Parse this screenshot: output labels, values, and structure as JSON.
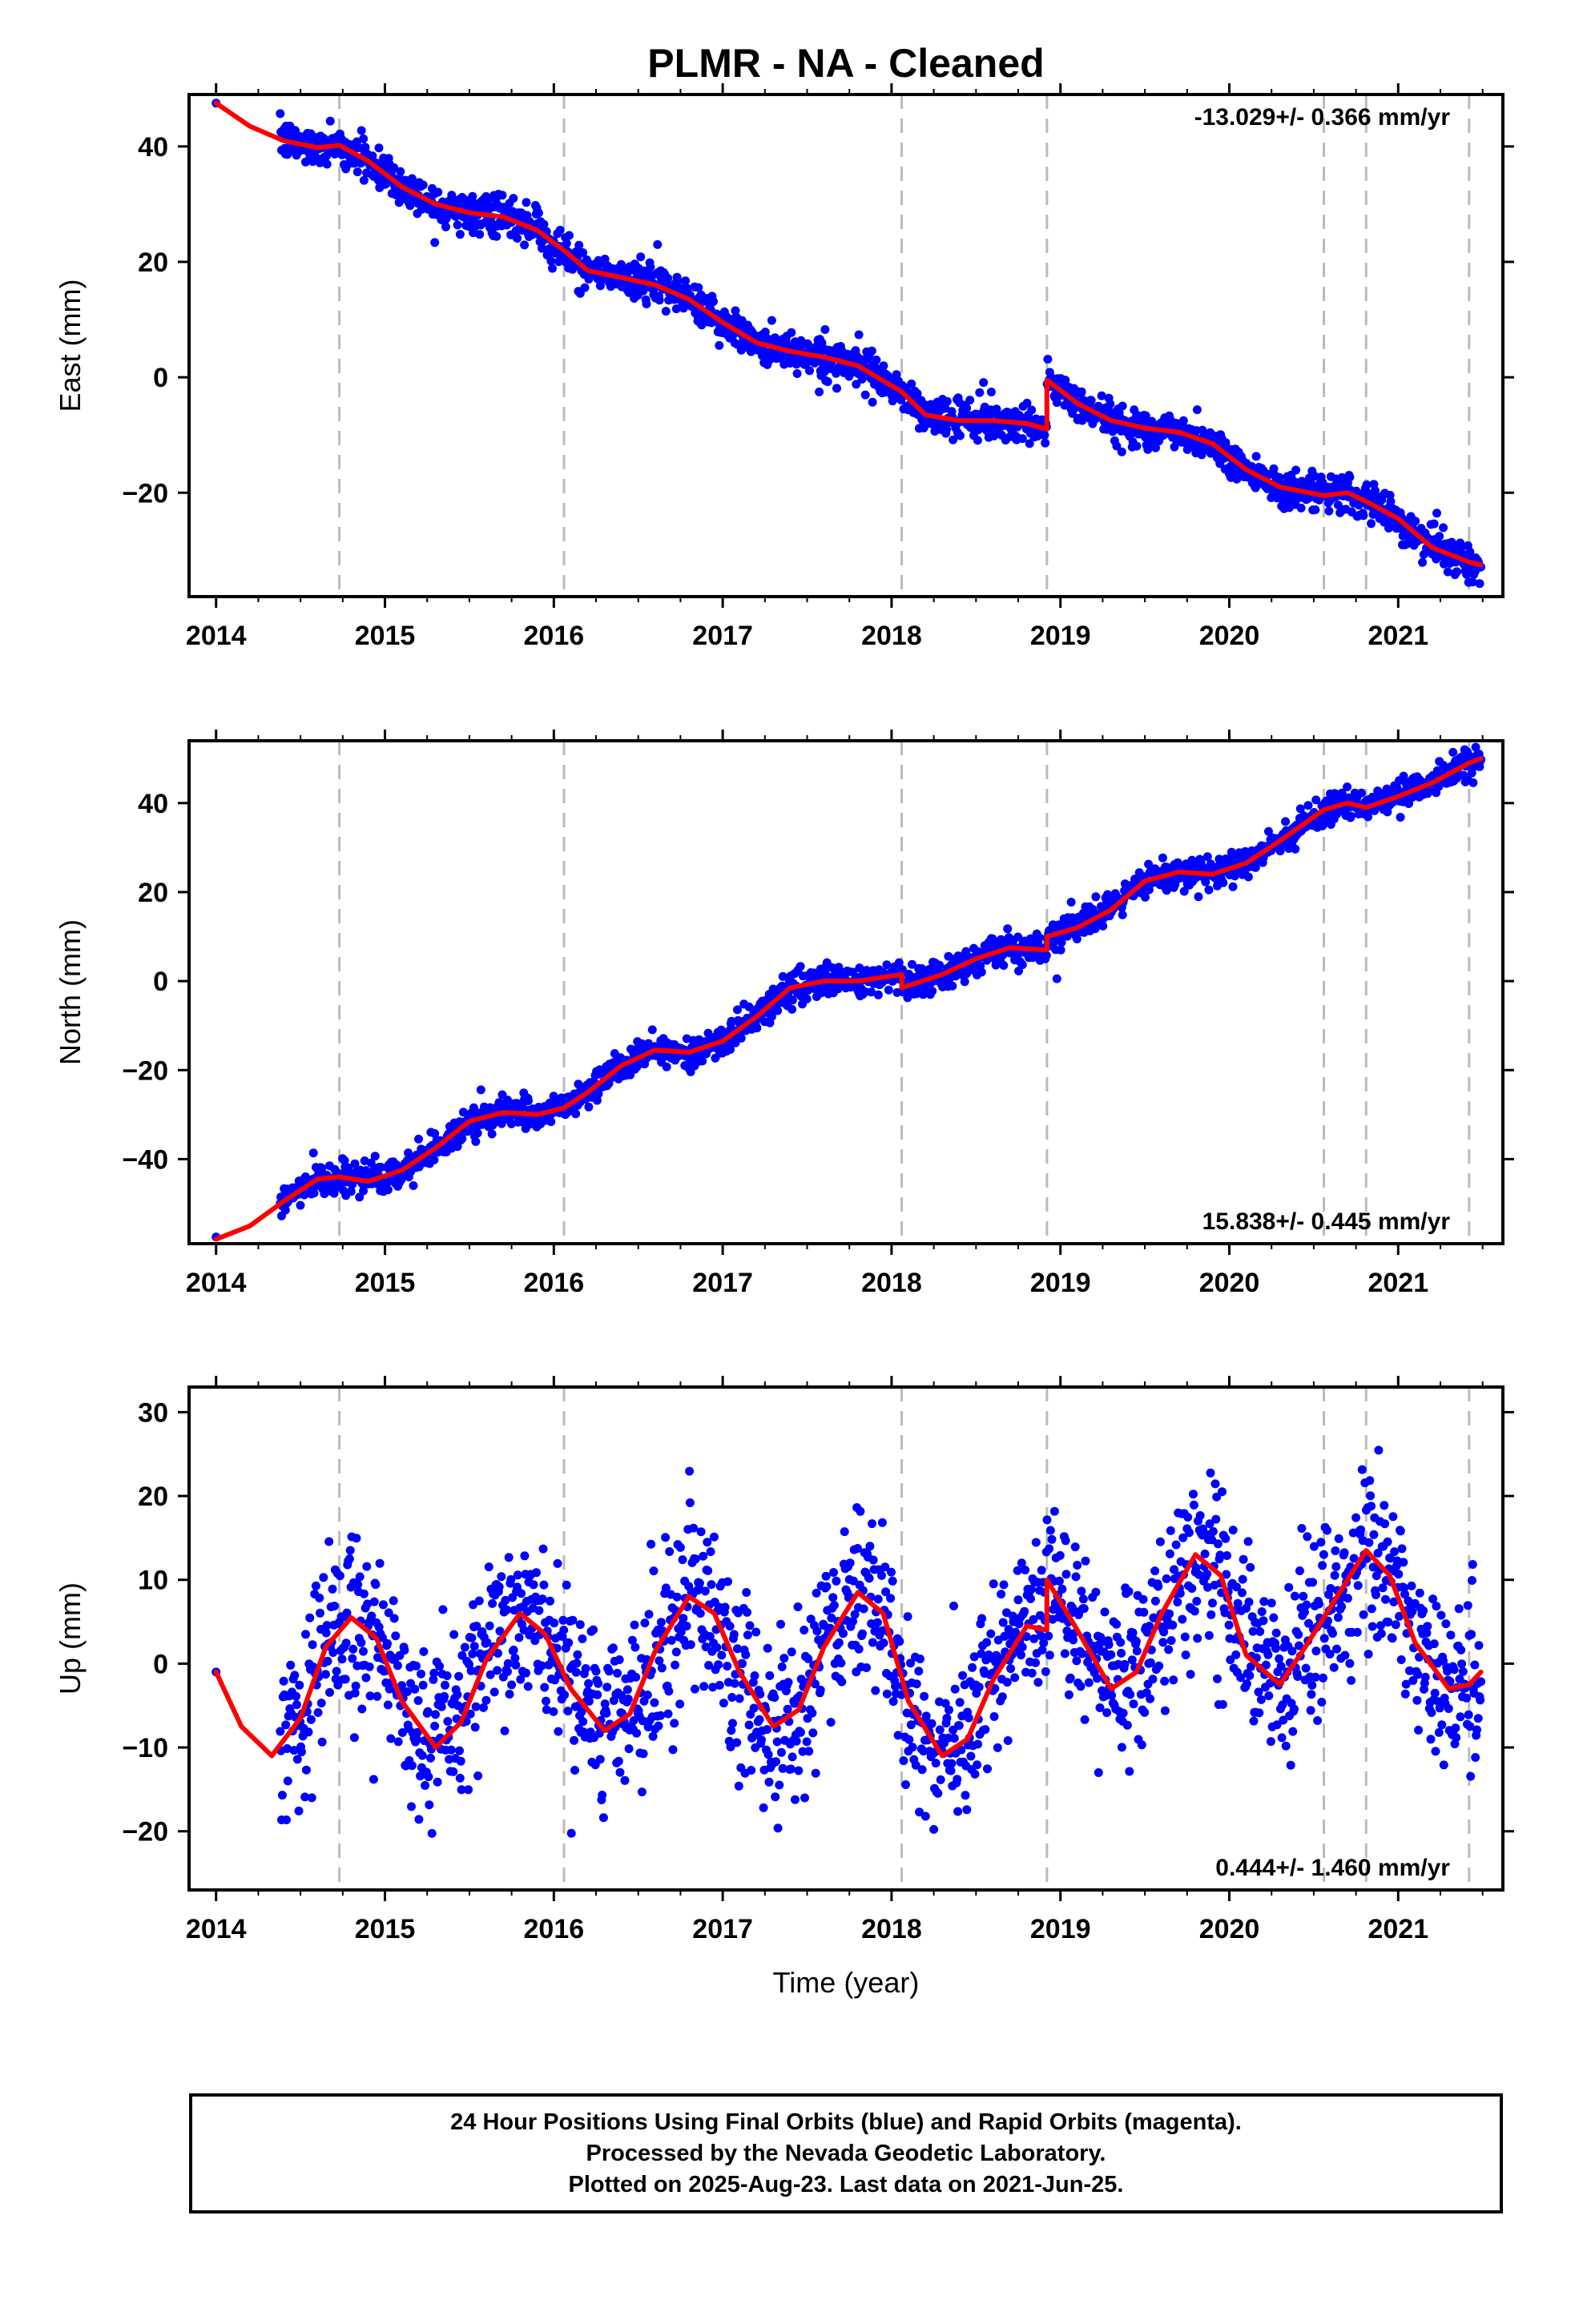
{
  "title": "PLMR  - NA - Cleaned",
  "footer": {
    "line1": "24 Hour Positions Using Final Orbits (blue) and Rapid Orbits (magenta).",
    "line2": "Processed by the Nevada Geodetic Laboratory.",
    "line3": "Plotted on 2025-Aug-23. Last data on 2021-Jun-25."
  },
  "colors": {
    "data_points": "#0000ff",
    "model_fit": "#ff0000",
    "event_lines": "#bbbbbb",
    "frame": "#000000"
  },
  "chart_data": [
    {
      "type": "scatter",
      "ylabel": "East (mm)",
      "xlabel": "",
      "xlim": [
        2013.84,
        2021.62
      ],
      "ylim": [
        -38,
        49
      ],
      "xticks": [
        "2014",
        "2015",
        "2016",
        "2017",
        "2018",
        "2019",
        "2020",
        "2021"
      ],
      "yticks": [
        "40",
        "20",
        "0",
        "−20"
      ],
      "ytick_values": [
        40,
        20,
        0,
        -20
      ],
      "rate_label": "-13.029+/- 0.366 mm/yr",
      "rate_position": "top-right",
      "event_lines_x": [
        2014.73,
        2016.06,
        2018.06,
        2018.92,
        2020.56,
        2020.81,
        2021.42
      ],
      "series": [
        {
          "kind": "points",
          "color": "#0000ff",
          "x_start": 2014.38,
          "x_end": 2021.49,
          "count": 1850,
          "scatter_mm": 1.6,
          "first_point": [
            2014.0,
            47.5
          ]
        },
        {
          "kind": "model",
          "color": "#ff0000",
          "x": [
            2014.0,
            2014.2,
            2014.4,
            2014.6,
            2014.73,
            2014.9,
            2015.1,
            2015.3,
            2015.5,
            2015.7,
            2015.9,
            2016.06,
            2016.2,
            2016.4,
            2016.6,
            2016.8,
            2017.0,
            2017.2,
            2017.4,
            2017.6,
            2017.8,
            2018.06,
            2018.2,
            2018.4,
            2018.6,
            2018.8,
            2018.92,
            2018.92,
            2019.1,
            2019.3,
            2019.5,
            2019.7,
            2019.9,
            2020.1,
            2020.3,
            2020.56,
            2020.7,
            2020.81,
            2021.0,
            2021.2,
            2021.42,
            2021.49
          ],
          "y": [
            47.5,
            43.5,
            41.0,
            39.8,
            40.2,
            37.5,
            33.0,
            30.0,
            28.5,
            27.8,
            25.5,
            22.0,
            18.5,
            17.3,
            16.0,
            13.5,
            9.5,
            6.0,
            4.5,
            3.5,
            2.0,
            -2.5,
            -6.5,
            -7.5,
            -7.5,
            -8.0,
            -9.0,
            -0.5,
            -4.5,
            -7.5,
            -8.8,
            -9.5,
            -11.5,
            -16.0,
            -19.0,
            -20.5,
            -20.0,
            -21.5,
            -24.5,
            -29.5,
            -32.0,
            -32.5
          ]
        }
      ]
    },
    {
      "type": "scatter",
      "ylabel": "North (mm)",
      "xlabel": "",
      "xlim": [
        2013.84,
        2021.62
      ],
      "ylim": [
        -59,
        54
      ],
      "xticks": [
        "2014",
        "2015",
        "2016",
        "2017",
        "2018",
        "2019",
        "2020",
        "2021"
      ],
      "yticks": [
        "40",
        "20",
        "0",
        "−20",
        "−40"
      ],
      "ytick_values": [
        40,
        20,
        0,
        -20,
        -40
      ],
      "rate_label": "15.838+/- 0.445 mm/yr",
      "rate_position": "bottom-right",
      "event_lines_x": [
        2014.73,
        2016.06,
        2018.06,
        2018.92,
        2020.56,
        2020.81,
        2021.42
      ],
      "series": [
        {
          "kind": "points",
          "color": "#0000ff",
          "x_start": 2014.38,
          "x_end": 2021.49,
          "count": 1850,
          "scatter_mm": 1.7,
          "first_point": [
            2014.0,
            -57.5
          ]
        },
        {
          "kind": "model",
          "color": "#ff0000",
          "x": [
            2014.0,
            2014.2,
            2014.4,
            2014.6,
            2014.73,
            2014.9,
            2015.1,
            2015.3,
            2015.5,
            2015.7,
            2015.9,
            2016.06,
            2016.2,
            2016.4,
            2016.6,
            2016.8,
            2017.0,
            2017.2,
            2017.4,
            2017.6,
            2017.8,
            2018.06,
            2018.06,
            2018.3,
            2018.5,
            2018.7,
            2018.92,
            2018.92,
            2019.1,
            2019.3,
            2019.5,
            2019.7,
            2019.9,
            2020.1,
            2020.3,
            2020.56,
            2020.7,
            2020.81,
            2021.0,
            2021.2,
            2021.42,
            2021.49
          ],
          "y": [
            -58.0,
            -55.0,
            -49.5,
            -44.5,
            -44.0,
            -45.0,
            -42.5,
            -37.5,
            -31.5,
            -29.5,
            -30.0,
            -28.5,
            -25.0,
            -19.0,
            -15.5,
            -16.0,
            -13.5,
            -8.0,
            -1.5,
            0.0,
            0.0,
            1.5,
            -1.5,
            1.5,
            5.0,
            7.5,
            7.0,
            10.0,
            12.0,
            16.0,
            22.5,
            24.5,
            24.0,
            26.5,
            31.5,
            38.5,
            40.0,
            39.0,
            41.5,
            44.5,
            49.0,
            50.0
          ]
        }
      ]
    },
    {
      "type": "scatter",
      "ylabel": "Up (mm)",
      "xlabel": "Time (year)",
      "xlim": [
        2013.84,
        2021.62
      ],
      "ylim": [
        -27,
        33
      ],
      "xticks": [
        "2014",
        "2015",
        "2016",
        "2017",
        "2018",
        "2019",
        "2020",
        "2021"
      ],
      "yticks": [
        "30",
        "20",
        "10",
        "0",
        "−10",
        "−20"
      ],
      "ytick_values": [
        30,
        20,
        10,
        0,
        -10,
        -20
      ],
      "rate_label": "0.444+/- 1.460 mm/yr",
      "rate_position": "bottom-right",
      "event_lines_x": [
        2014.73,
        2016.06,
        2018.06,
        2018.92,
        2020.56,
        2020.81,
        2021.42
      ],
      "series": [
        {
          "kind": "points",
          "color": "#0000ff",
          "x_start": 2014.38,
          "x_end": 2021.49,
          "count": 1750,
          "scatter_mm": 5.0,
          "first_point": [
            2014.0,
            -1.0
          ]
        },
        {
          "kind": "model",
          "color": "#ff0000",
          "x": [
            2014.0,
            2014.15,
            2014.33,
            2014.5,
            2014.65,
            2014.8,
            2014.95,
            2015.1,
            2015.3,
            2015.45,
            2015.6,
            2015.8,
            2015.95,
            2016.1,
            2016.3,
            2016.45,
            2016.6,
            2016.8,
            2016.95,
            2017.1,
            2017.3,
            2017.45,
            2017.6,
            2017.8,
            2017.95,
            2018.1,
            2018.3,
            2018.45,
            2018.6,
            2018.8,
            2018.92,
            2018.92,
            2019.1,
            2019.3,
            2019.45,
            2019.6,
            2019.8,
            2019.95,
            2020.1,
            2020.3,
            2020.45,
            2020.56,
            2020.7,
            2020.81,
            2020.95,
            2021.1,
            2021.3,
            2021.42,
            2021.49
          ],
          "y": [
            -1.0,
            -7.5,
            -11.0,
            -6.5,
            2.0,
            5.5,
            3.0,
            -4.5,
            -10.0,
            -7.0,
            0.5,
            6.0,
            3.5,
            -3.0,
            -8.0,
            -6.0,
            1.5,
            8.0,
            6.0,
            -1.0,
            -7.5,
            -5.5,
            2.0,
            8.5,
            6.0,
            -4.5,
            -11.0,
            -9.0,
            -2.0,
            4.5,
            4.0,
            10.0,
            4.0,
            -3.0,
            -1.0,
            6.0,
            13.0,
            10.5,
            1.0,
            -2.5,
            2.0,
            5.5,
            10.0,
            13.5,
            10.5,
            2.5,
            -3.0,
            -2.5,
            -1.0
          ]
        }
      ]
    }
  ]
}
